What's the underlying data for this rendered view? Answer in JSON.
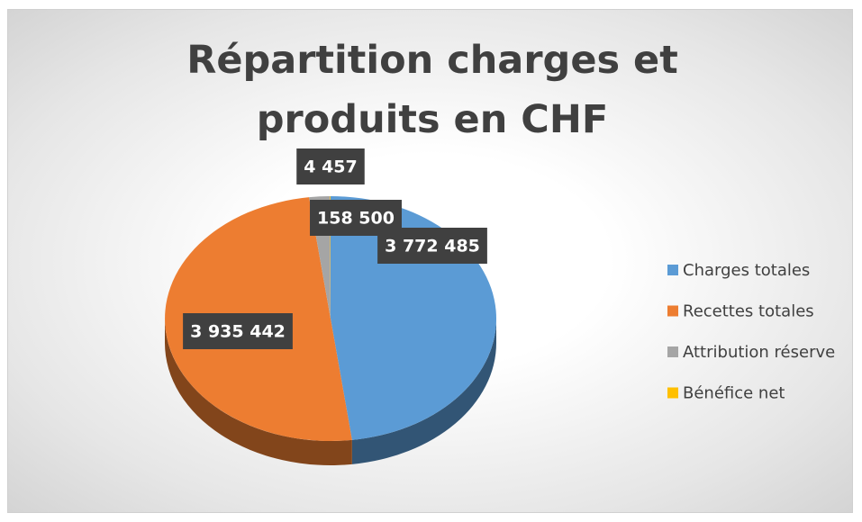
{
  "chart_data": {
    "type": "pie",
    "title": "Répartition charges et produits en CHF",
    "categories": [
      "Charges totales",
      "Recettes totales",
      "Attribution réserve",
      "Bénéfice net"
    ],
    "values": [
      3772485,
      3935442,
      158500,
      4457
    ],
    "value_labels": [
      "3 772 485",
      "3 935 442",
      "158 500",
      "4 457"
    ],
    "colors": [
      "#5b9bd5",
      "#ed7d31",
      "#a5a5a5",
      "#ffc000"
    ],
    "legend": "right"
  }
}
